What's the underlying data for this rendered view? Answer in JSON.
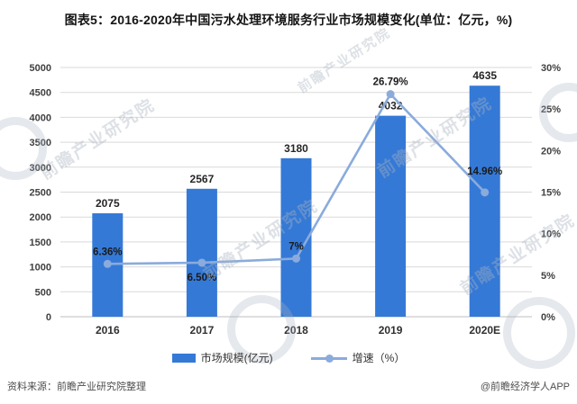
{
  "title": "图表5：2016-2020年中国污水处理环境服务行业市场规模变化(单位：亿元，%)",
  "watermark": {
    "text": "前瞻产业研究院"
  },
  "chart_data": {
    "type": "combo-bar-line",
    "title": "图表5：2016-2020年中国污水处理环境服务行业市场规模变化(单位：亿元，%)",
    "categories": [
      "2016",
      "2017",
      "2018",
      "2019",
      "2020E"
    ],
    "series": [
      {
        "name": "市场规模(亿元)",
        "chart": "bar",
        "axis": "left",
        "values": [
          2075,
          2567,
          3180,
          4032,
          4635
        ],
        "labels": [
          "2075",
          "2567",
          "3180",
          "4032",
          "4635"
        ]
      },
      {
        "name": "增速（%）",
        "chart": "line",
        "axis": "right",
        "values": [
          6.36,
          6.5,
          7,
          26.79,
          14.96
        ],
        "labels": [
          "6.36%",
          "6.50%",
          "7%",
          "26.79%",
          "14.96%"
        ],
        "label_dy": [
          -10,
          20,
          -10,
          -10,
          -20
        ]
      }
    ],
    "left_axis": {
      "min": 0,
      "max": 5000,
      "step": 500,
      "ticks": [
        "5000",
        "4500",
        "4000",
        "3500",
        "3000",
        "2500",
        "2000",
        "1500",
        "1000",
        "500",
        "0"
      ]
    },
    "right_axis": {
      "min": 0,
      "max": 30,
      "step": 5,
      "ticks": [
        "30%",
        "25%",
        "20%",
        "15%",
        "10%",
        "5%",
        "0%"
      ]
    },
    "grid": true,
    "legend_position": "bottom"
  },
  "legend": {
    "items": [
      {
        "label": "市场规模(亿元)",
        "type": "bar"
      },
      {
        "label": "增速（%）",
        "type": "line"
      }
    ]
  },
  "footer": {
    "source": "资料来源：前瞻产业研究院整理",
    "credit": "@前瞻经济学人APP"
  },
  "colors": {
    "bar": "#3579d6",
    "line": "#8aabdc",
    "grid": "#d9d9d9",
    "zero_line": "#bfbfbf",
    "axis_text": "#404040",
    "label_text": "#262626"
  }
}
